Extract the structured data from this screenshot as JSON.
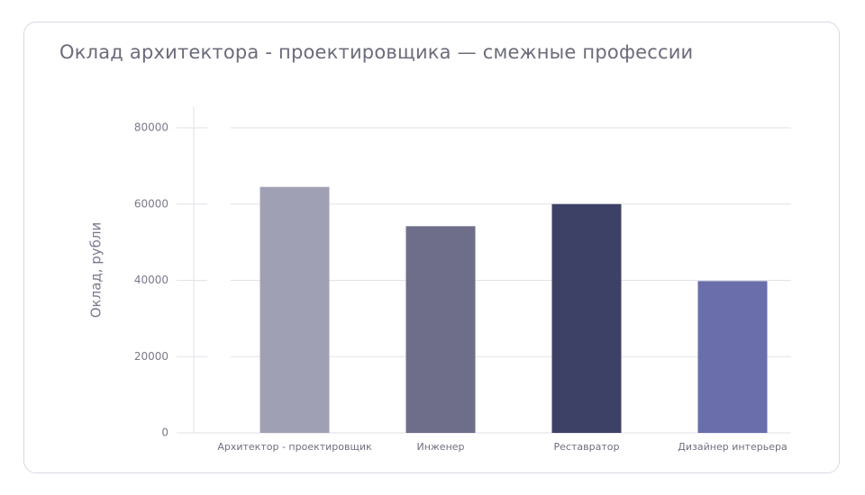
{
  "chart_data": {
    "type": "bar",
    "title": "Оклад архитектора - проектировщика — смежные профессии",
    "xlabel": "",
    "ylabel": "Оклад, рубли",
    "categories": [
      "Архитектор - проектировщик",
      "Инженер",
      "Реставратор",
      "Дизайнер интерьера"
    ],
    "values": [
      64500,
      54200,
      60000,
      39800
    ],
    "bar_colors": [
      "#a0a0b4",
      "#6e6e8a",
      "#3e4166",
      "#6a6eaa"
    ],
    "ylim": [
      0,
      80000
    ],
    "yticks": [
      0,
      20000,
      40000,
      60000,
      80000
    ],
    "grid": true,
    "legend": "none"
  },
  "colors": {
    "gridline": "#e2e2ea",
    "axis": "#e2e2ea"
  }
}
